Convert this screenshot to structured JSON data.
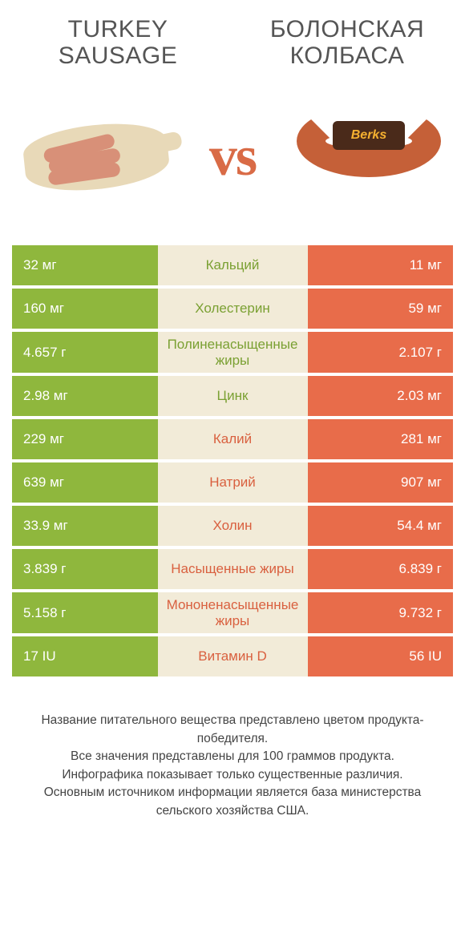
{
  "colors": {
    "green": "#8fb73d",
    "orange": "#e86c4a",
    "mid_bg": "#f2ebd8",
    "text_green": "#7aa032",
    "text_orange": "#d9603f"
  },
  "left_title": "TURKEY SAUSAGE",
  "right_title": "БОЛОНСКАЯ КОЛБАСА",
  "vs": "vs",
  "rows": [
    {
      "label": "Кальций",
      "left": "32 мг",
      "right": "11 мг",
      "winner": "left"
    },
    {
      "label": "Холестерин",
      "left": "160 мг",
      "right": "59 мг",
      "winner": "left"
    },
    {
      "label": "Полиненасыщенные жиры",
      "left": "4.657 г",
      "right": "2.107 г",
      "winner": "left"
    },
    {
      "label": "Цинк",
      "left": "2.98 мг",
      "right": "2.03 мг",
      "winner": "left"
    },
    {
      "label": "Калий",
      "left": "229 мг",
      "right": "281 мг",
      "winner": "right"
    },
    {
      "label": "Натрий",
      "left": "639 мг",
      "right": "907 мг",
      "winner": "right"
    },
    {
      "label": "Холин",
      "left": "33.9 мг",
      "right": "54.4 мг",
      "winner": "right"
    },
    {
      "label": "Насыщенные жиры",
      "left": "3.839 г",
      "right": "6.839 г",
      "winner": "right"
    },
    {
      "label": "Мононенасыщенные жиры",
      "left": "5.158 г",
      "right": "9.732 г",
      "winner": "right"
    },
    {
      "label": "Витамин D",
      "left": "17 IU",
      "right": "56 IU",
      "winner": "right"
    }
  ],
  "footer": [
    "Название питательного вещества представлено цветом продукта-победителя.",
    "Все значения представлены для 100 граммов продукта.",
    "Инфографика показывает только существенные различия.",
    "Основным источником информации является база министерства сельского хозяйства США."
  ],
  "ring_brand": "Berks"
}
